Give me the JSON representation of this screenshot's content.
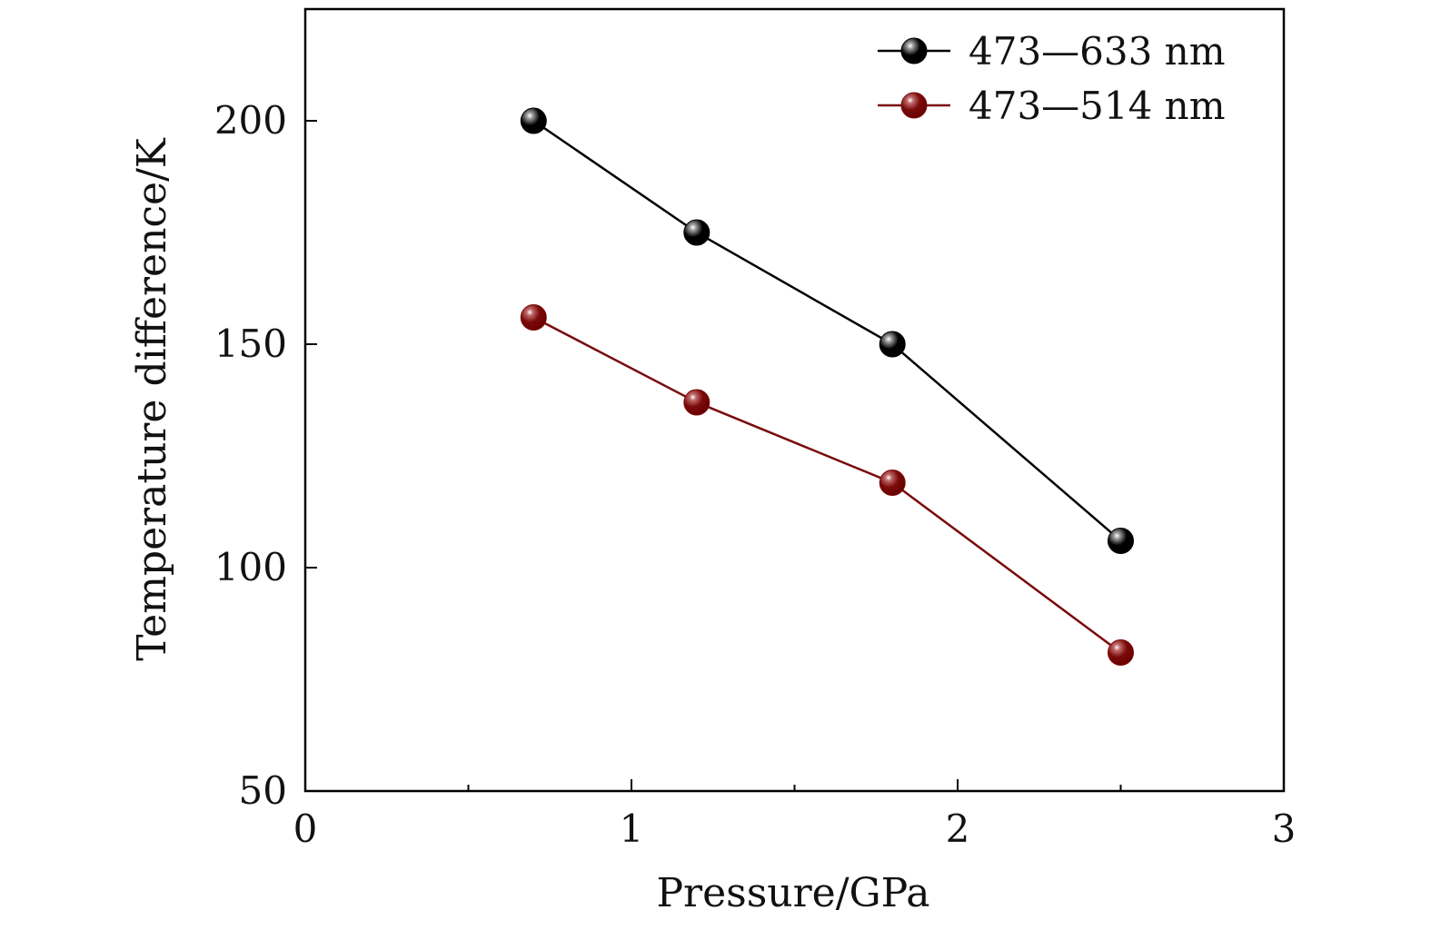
{
  "chart_data": {
    "type": "line",
    "xlabel": "Pressure/GPa",
    "ylabel": "Temperature difference/K",
    "xlim": [
      0,
      3
    ],
    "ylim": [
      50,
      225
    ],
    "xticks": [
      0,
      1,
      2,
      3
    ],
    "yticks": [
      50,
      100,
      150,
      200
    ],
    "x_minor_ticks": [
      0.5,
      1.5,
      2.5
    ],
    "grid": false,
    "legend_position": "top-right",
    "series": [
      {
        "name": "473—633 nm",
        "color": "#000000",
        "x": [
          0.7,
          1.2,
          1.8,
          2.5
        ],
        "y": [
          200,
          175,
          150,
          106
        ]
      },
      {
        "name": "473—514 nm",
        "color": "#7a0a0a",
        "x": [
          0.7,
          1.2,
          1.8,
          2.5
        ],
        "y": [
          156,
          137,
          119,
          81
        ]
      }
    ]
  }
}
